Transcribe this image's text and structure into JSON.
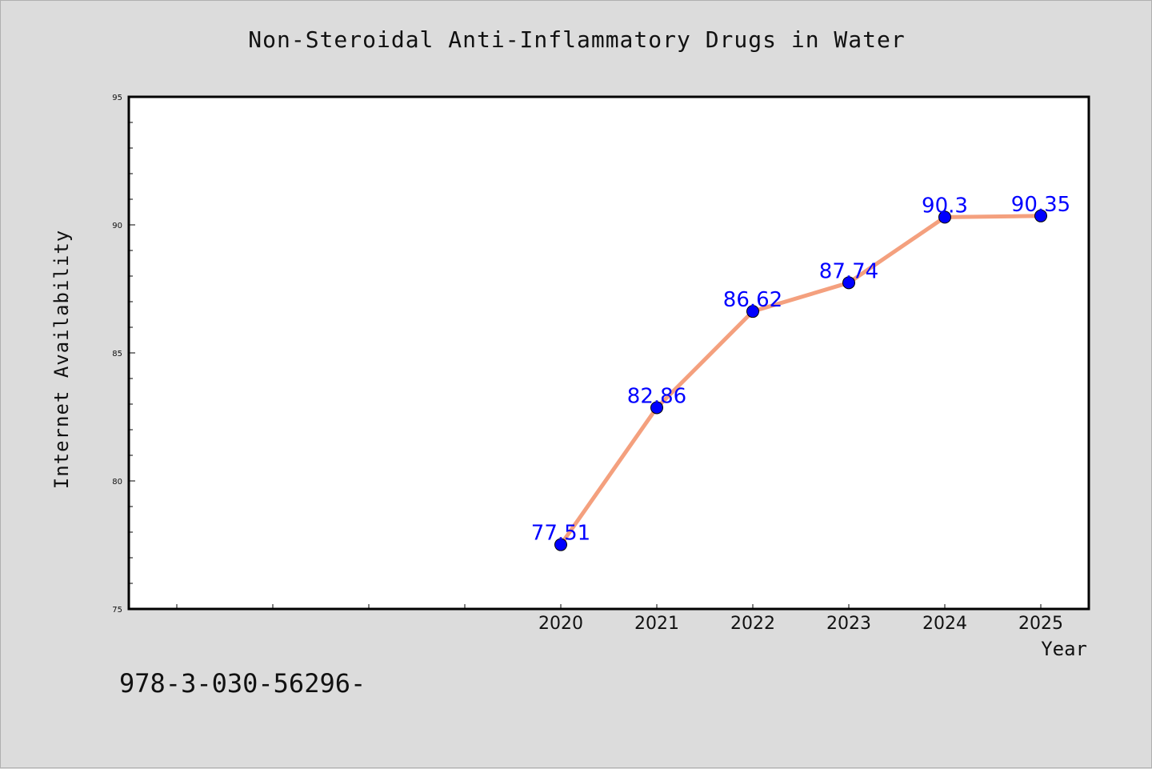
{
  "chart_data": {
    "type": "line",
    "title": "Non-Steroidal Anti-Inflammatory Drugs in Water",
    "xlabel": "Year",
    "ylabel": "Internet Availability",
    "x": [
      "2020",
      "2021",
      "2022",
      "2023",
      "2024",
      "2025"
    ],
    "values": [
      77.51,
      82.86,
      86.62,
      87.74,
      90.3,
      90.35
    ],
    "data_labels": [
      "77.51",
      "82.86",
      "86.62",
      "87.74",
      "90.3",
      "90.35"
    ],
    "ylim": [
      75,
      95
    ],
    "yticks": [
      "75",
      "80",
      "85",
      "90",
      "95"
    ],
    "grid": false,
    "colors": {
      "line": "#f4a07e",
      "marker": "#0000ff",
      "label": "#0000ff",
      "background": "#dcdcdc",
      "plot_bg": "#ffffff"
    }
  },
  "footer": {
    "isbn": "978-3-030-56296-"
  }
}
